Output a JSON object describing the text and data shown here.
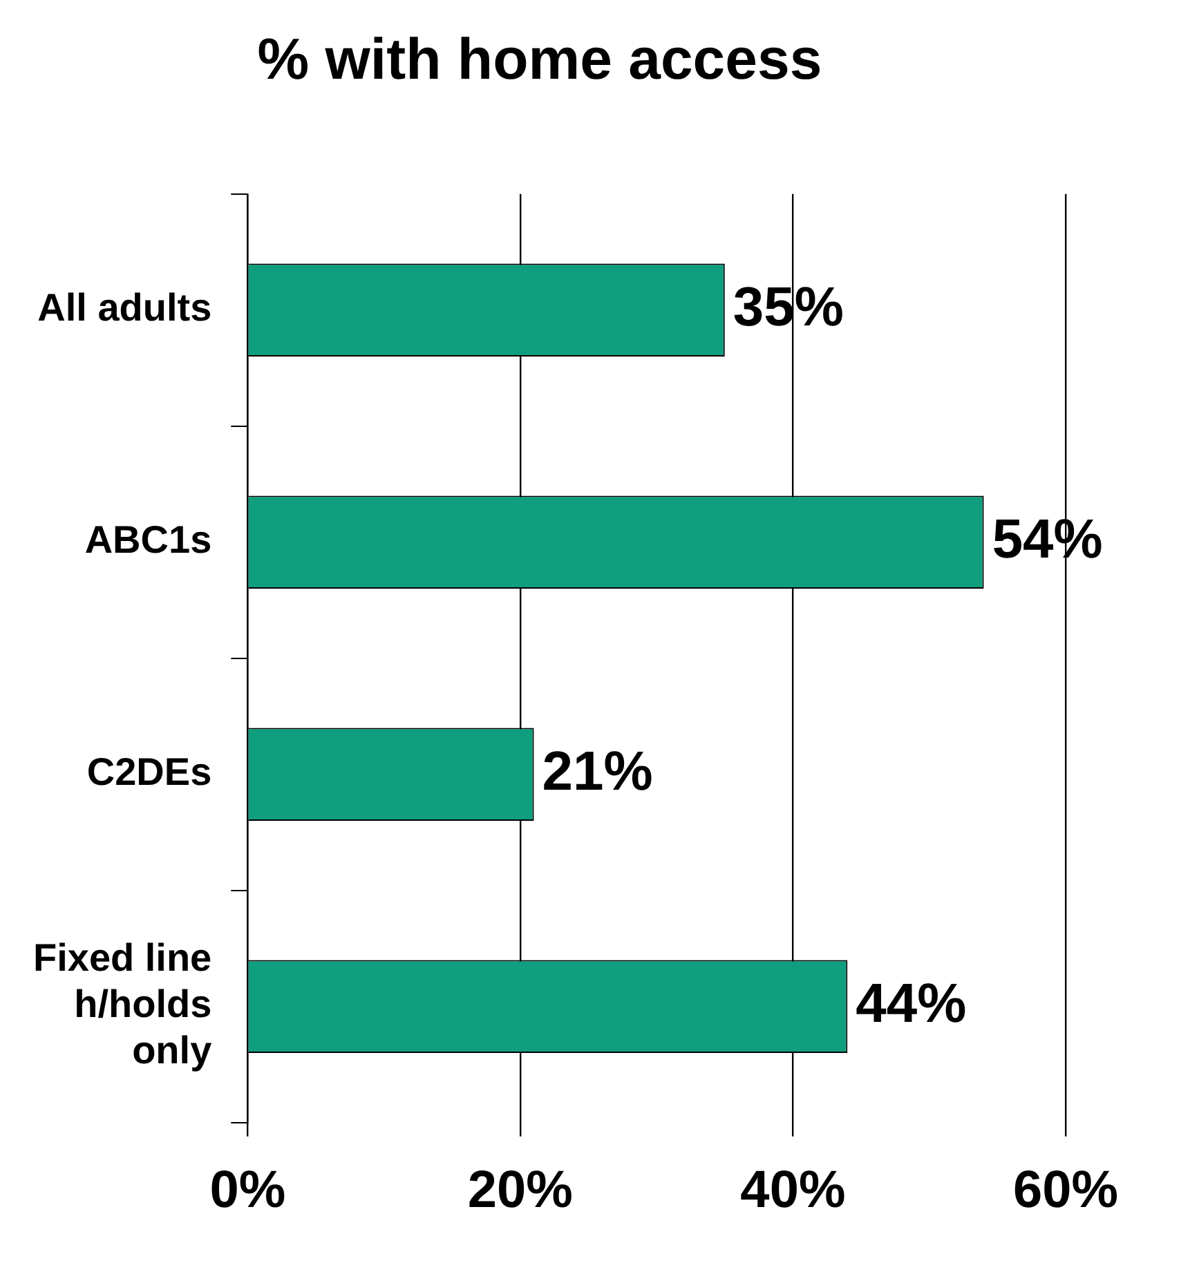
{
  "chart_data": {
    "type": "bar",
    "orientation": "horizontal",
    "title": "% with home access",
    "categories": [
      "All adults",
      "ABC1s",
      "C2DEs",
      "Fixed line h/holds only"
    ],
    "values": [
      35,
      54,
      21,
      44
    ],
    "value_labels": [
      "35%",
      "54%",
      "21%",
      "44%"
    ],
    "color": "#0f9e7e",
    "xlim": [
      0,
      60
    ],
    "xticks": [
      {
        "value": 0,
        "label": "0%"
      },
      {
        "value": 20,
        "label": "20%"
      },
      {
        "value": 40,
        "label": "40%"
      },
      {
        "value": 60,
        "label": "60%"
      }
    ],
    "grid": "x",
    "legend": false
  }
}
